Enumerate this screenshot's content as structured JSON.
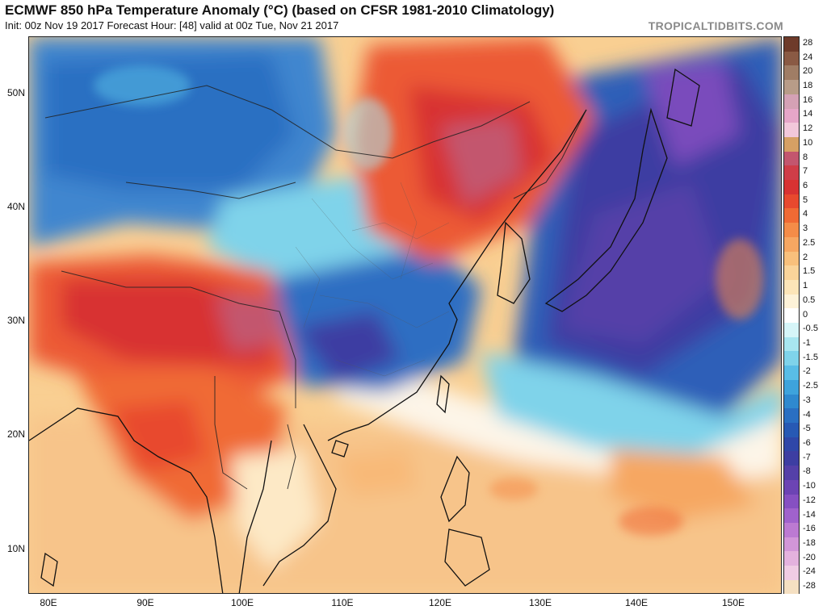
{
  "header": {
    "title": "ECMWF 850 hPa Temperature Anomaly (°C) (based on CFSR 1981-2010 Climatology)",
    "subtitle": "Init: 00z Nov 19 2017   Forecast Hour: [48]   valid at 00z Tue, Nov 21 2017",
    "brand": "TROPICALTIDBITS.COM"
  },
  "map": {
    "lat_labels": [
      "50N",
      "40N",
      "30N",
      "20N",
      "10N"
    ],
    "lon_labels": [
      "80E",
      "90E",
      "100E",
      "110E",
      "120E",
      "130E",
      "140E",
      "150E"
    ]
  },
  "colorbar": {
    "entries": [
      {
        "label": "28",
        "color": "#6e3b2a"
      },
      {
        "label": "24",
        "color": "#8a5a44"
      },
      {
        "label": "20",
        "color": "#a07d65"
      },
      {
        "label": "18",
        "color": "#b89c88"
      },
      {
        "label": "16",
        "color": "#d4a1b5"
      },
      {
        "label": "14",
        "color": "#e6a6c8"
      },
      {
        "label": "12",
        "color": "#f2c8da"
      },
      {
        "label": "10",
        "color": "#d6a064"
      },
      {
        "label": "8",
        "color": "#c3566e"
      },
      {
        "label": "7",
        "color": "#cf3d48"
      },
      {
        "label": "6",
        "color": "#d83232"
      },
      {
        "label": "5",
        "color": "#e8492e"
      },
      {
        "label": "4",
        "color": "#f06a34"
      },
      {
        "label": "3",
        "color": "#f48c48"
      },
      {
        "label": "2.5",
        "color": "#f6a762"
      },
      {
        "label": "2",
        "color": "#f8c07c"
      },
      {
        "label": "1.5",
        "color": "#fad49a"
      },
      {
        "label": "1",
        "color": "#fce5b8"
      },
      {
        "label": "0.5",
        "color": "#fdf2d8"
      },
      {
        "label": "0",
        "color": "#ffffff"
      },
      {
        "label": "-0.5",
        "color": "#d6f5f8"
      },
      {
        "label": "-1",
        "color": "#a8e6f0"
      },
      {
        "label": "-1.5",
        "color": "#7fd3ea"
      },
      {
        "label": "-2",
        "color": "#59bde6"
      },
      {
        "label": "-2.5",
        "color": "#3ea3dc"
      },
      {
        "label": "-3",
        "color": "#2f89cf"
      },
      {
        "label": "-4",
        "color": "#2a6fc2"
      },
      {
        "label": "-5",
        "color": "#2759b4"
      },
      {
        "label": "-6",
        "color": "#2f47a8"
      },
      {
        "label": "-7",
        "color": "#3d3ea2"
      },
      {
        "label": "-8",
        "color": "#5440a8"
      },
      {
        "label": "-10",
        "color": "#6c44b4"
      },
      {
        "label": "-12",
        "color": "#8650c2"
      },
      {
        "label": "-14",
        "color": "#a062cc"
      },
      {
        "label": "-16",
        "color": "#bc7ad2"
      },
      {
        "label": "-18",
        "color": "#d296d8"
      },
      {
        "label": "-20",
        "color": "#e4b2de"
      },
      {
        "label": "-24",
        "color": "#f0cce4"
      },
      {
        "label": "-28",
        "color": "#f5e0c2"
      }
    ]
  }
}
